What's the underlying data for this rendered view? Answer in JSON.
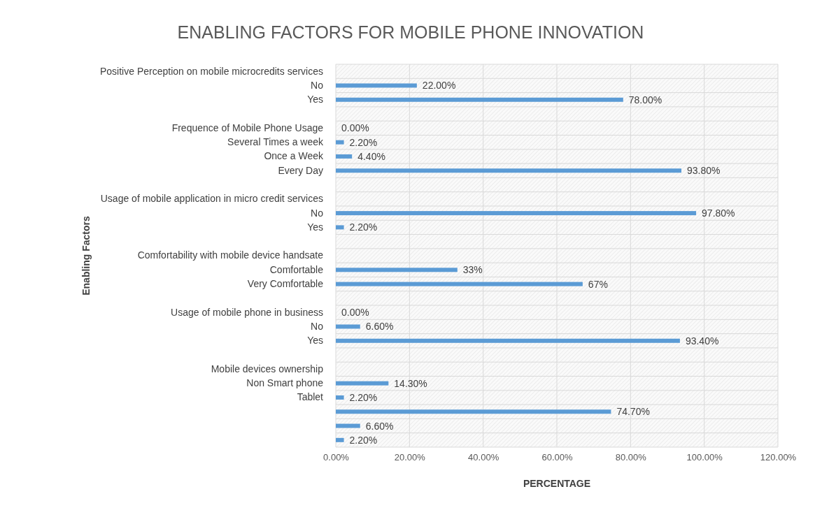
{
  "chart_data": {
    "type": "bar",
    "orientation": "horizontal",
    "title": "ENABLING FACTORS FOR MOBILE PHONE INNOVATION",
    "xlabel": "PERCENTAGE",
    "ylabel": "Enabling Factors",
    "categories": [
      "Positive Perception on mobile microcredits services",
      "No",
      "Yes",
      null,
      "Frequence of Mobile Phone Usage",
      "Several Times a week",
      "Once a Week",
      "Every Day",
      null,
      "Usage of mobile application in micro credit services",
      "No",
      "Yes",
      null,
      "Comfortability with mobile device handsate",
      "Comfortable",
      "Very Comfortable",
      null,
      "Usage of mobile phone in business",
      "No",
      "Yes",
      null,
      "Mobile devices ownership",
      "Non Smart phone",
      "Tablet",
      null,
      null,
      null
    ],
    "values": [
      null,
      22,
      78,
      null,
      0,
      2.2,
      4.4,
      93.8,
      null,
      null,
      97.8,
      2.2,
      null,
      null,
      33,
      67,
      null,
      0,
      6.6,
      93.4,
      null,
      null,
      14.3,
      2.2,
      74.7,
      6.6,
      2.2
    ],
    "value_labels": [
      null,
      "22.00%",
      "78.00%",
      null,
      "0.00%",
      "2.20%",
      "4.40%",
      "93.80%",
      null,
      null,
      "97.80%",
      "2.20%",
      null,
      null,
      "33%",
      "67%",
      null,
      "0.00%",
      "6.60%",
      "93.40%",
      null,
      null,
      "14.30%",
      "2.20%",
      "74.70%",
      "6.60%",
      "2.20%"
    ],
    "color": "#5b9bd5",
    "xlim": [
      0,
      120
    ],
    "xticks": [
      {
        "value": 0,
        "label": "0.00%"
      },
      {
        "value": 20,
        "label": "20.00%"
      },
      {
        "value": 40,
        "label": "40.00%"
      },
      {
        "value": 60,
        "label": "60.00%"
      },
      {
        "value": 80,
        "label": "80.00%"
      },
      {
        "value": 100,
        "label": "100.00%"
      },
      {
        "value": 120,
        "label": "120.00%"
      }
    ],
    "grid": true
  }
}
